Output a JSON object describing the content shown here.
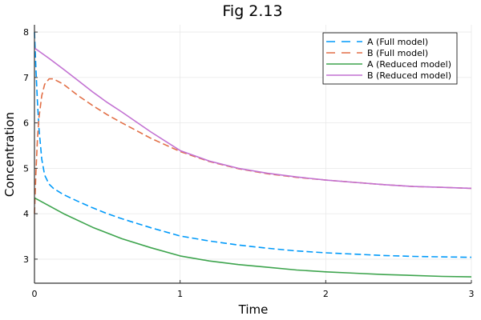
{
  "chart_data": {
    "type": "line",
    "title": "Fig 2.13",
    "xlabel": "Time",
    "ylabel": "Concentration",
    "xlim": [
      0,
      3
    ],
    "ylim": [
      2.47,
      8.16
    ],
    "xticks": [
      0,
      1,
      2,
      3
    ],
    "yticks": [
      3,
      4,
      5,
      6,
      7,
      8
    ],
    "grid": true,
    "legend_position": "top-right",
    "series": [
      {
        "name": "A (Full model)",
        "color": "#009AFA",
        "style": "dashed",
        "x": [
          0,
          0.01,
          0.02,
          0.03,
          0.05,
          0.07,
          0.1,
          0.13,
          0.2,
          0.3,
          0.4,
          0.5,
          0.6,
          0.8,
          1.0,
          1.2,
          1.4,
          1.6,
          1.8,
          2.0,
          2.2,
          2.4,
          2.6,
          2.8,
          3.0
        ],
        "y": [
          8.0,
          7.2,
          6.5,
          5.9,
          5.2,
          4.85,
          4.65,
          4.56,
          4.42,
          4.27,
          4.13,
          4.0,
          3.89,
          3.69,
          3.51,
          3.4,
          3.31,
          3.24,
          3.18,
          3.14,
          3.11,
          3.08,
          3.06,
          3.05,
          3.04
        ]
      },
      {
        "name": "B (Full model)",
        "color": "#E26F46",
        "style": "dashed",
        "x": [
          0,
          0.01,
          0.02,
          0.03,
          0.05,
          0.07,
          0.1,
          0.13,
          0.2,
          0.3,
          0.4,
          0.5,
          0.6,
          0.8,
          1.0,
          1.2,
          1.4,
          1.6,
          1.8,
          2.0,
          2.2,
          2.4,
          2.6,
          2.8,
          3.0
        ],
        "y": [
          4.0,
          4.9,
          5.6,
          6.1,
          6.6,
          6.85,
          6.97,
          6.97,
          6.85,
          6.6,
          6.38,
          6.18,
          6.0,
          5.66,
          5.37,
          5.15,
          4.99,
          4.88,
          4.8,
          4.74,
          4.69,
          4.64,
          4.6,
          4.58,
          4.56
        ]
      },
      {
        "name": "A (Reduced model)",
        "color": "#3DA44D",
        "style": "solid",
        "x": [
          0,
          0.2,
          0.4,
          0.6,
          0.8,
          1.0,
          1.2,
          1.4,
          1.6,
          1.8,
          2.0,
          2.2,
          2.4,
          2.6,
          2.8,
          3.0
        ],
        "y": [
          4.35,
          4.0,
          3.7,
          3.45,
          3.25,
          3.07,
          2.96,
          2.88,
          2.82,
          2.76,
          2.72,
          2.69,
          2.66,
          2.64,
          2.62,
          2.61
        ]
      },
      {
        "name": "B (Reduced model)",
        "color": "#C271D2",
        "style": "solid",
        "x": [
          0,
          0.1,
          0.2,
          0.3,
          0.4,
          0.5,
          0.6,
          0.8,
          1.0,
          1.2,
          1.4,
          1.6,
          1.8,
          2.0,
          2.2,
          2.4,
          2.6,
          2.8,
          3.0
        ],
        "y": [
          7.65,
          7.42,
          7.18,
          6.93,
          6.68,
          6.45,
          6.24,
          5.8,
          5.39,
          5.16,
          5.0,
          4.89,
          4.81,
          4.74,
          4.69,
          4.64,
          4.6,
          4.58,
          4.56
        ]
      }
    ]
  }
}
